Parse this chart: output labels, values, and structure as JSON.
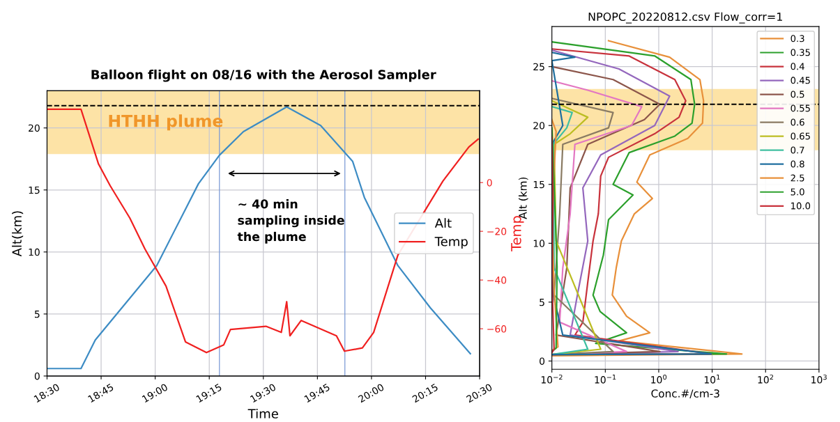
{
  "chart_data": [
    {
      "type": "line",
      "title": "Balloon flight on 08/16 with the Aerosol Sampler",
      "xlabel": "Time",
      "ylabel": "Alt(km)",
      "y2label": "Temp",
      "xlim": [
        18.5,
        20.5
      ],
      "xticks": [
        {
          "value": 18.5,
          "label": "18:30"
        },
        {
          "value": 18.75,
          "label": "18:45"
        },
        {
          "value": 19.0,
          "label": "19:00"
        },
        {
          "value": 19.25,
          "label": "19:15"
        },
        {
          "value": 19.5,
          "label": "19:30"
        },
        {
          "value": 19.75,
          "label": "19:45"
        },
        {
          "value": 20.0,
          "label": "20:00"
        },
        {
          "value": 20.25,
          "label": "20:15"
        },
        {
          "value": 20.5,
          "label": "20:30"
        }
      ],
      "ylim": [
        0,
        23
      ],
      "yticks": [
        0,
        5,
        10,
        15,
        20
      ],
      "y2lim": [
        -79.4,
        37.7
      ],
      "y2ticks": [
        {
          "value": -60,
          "label": "−60"
        },
        {
          "value": -40,
          "label": "−40"
        },
        {
          "value": -20,
          "label": "−20"
        },
        0
      ],
      "grid": true,
      "legend": "right",
      "series": [
        {
          "name": "Alt",
          "color": "#3d8cc4",
          "x": [
            18.5,
            18.657,
            18.723,
            19.007,
            19.2,
            19.297,
            19.408,
            19.608,
            19.765,
            19.877,
            19.913,
            19.967,
            20.122,
            20.272,
            20.457
          ],
          "values": [
            0.6,
            0.6,
            2.9,
            8.9,
            15.5,
            17.8,
            19.7,
            21.7,
            20.2,
            18.0,
            17.3,
            14.4,
            8.9,
            5.5,
            1.8
          ]
        },
        {
          "name": "Temp",
          "color": "#f02020",
          "axis": "y2",
          "x": [
            18.5,
            18.657,
            18.738,
            18.792,
            18.883,
            18.953,
            19.05,
            19.14,
            19.167,
            19.237,
            19.317,
            19.348,
            19.512,
            19.583,
            19.608,
            19.623,
            19.675,
            19.838,
            19.875,
            19.958,
            20.01,
            20.122,
            20.33,
            20.45,
            20.493
          ],
          "values": [
            30.1,
            30.1,
            7.6,
            -1.3,
            -14.6,
            -27.3,
            -42.5,
            -65.4,
            -66.6,
            -69.8,
            -66.6,
            -60.3,
            -59.0,
            -61.5,
            -48.9,
            -62.9,
            -56.6,
            -62.9,
            -69.2,
            -67.9,
            -61.5,
            -29.8,
            0.6,
            14.6,
            17.8
          ]
        }
      ],
      "ref_lines": [
        {
          "axis": "y",
          "value": 21.8,
          "label": null,
          "color": "#000000",
          "line_style": "dashed"
        },
        {
          "axis": "x",
          "value": 19.297,
          "label": null,
          "color": "#7a9ad6",
          "line_style": "solid"
        },
        {
          "axis": "x",
          "value": 19.877,
          "label": null,
          "color": "#7a9ad6",
          "line_style": "solid"
        }
      ],
      "bands": [
        {
          "axis": "y",
          "from": 17.9,
          "to": 23.0,
          "label": "HTHH plume",
          "color": "#fde3a6"
        }
      ],
      "annotations": [
        "~ 40 min\nsampling inside\nthe plume"
      ]
    },
    {
      "type": "line",
      "title": "NPOPC_20220812.csv Flow_corr=1",
      "xlabel": "Conc.#/cm-3",
      "ylabel": "Alt (km)",
      "log": "x",
      "xlim": [
        0.01,
        1000
      ],
      "xticks": [
        {
          "value": 0.01,
          "label": "10$^{−2}$"
        },
        {
          "value": 0.1,
          "label": "10$^{−1}$"
        },
        {
          "value": 1,
          "label": "10$^{0}$"
        },
        {
          "value": 10,
          "label": "10$^{1}$"
        },
        {
          "value": 100,
          "label": "10$^{2}$"
        },
        {
          "value": 1000,
          "label": "10$^{3}$"
        }
      ],
      "ylim": [
        -0.7,
        28.4
      ],
      "yticks": [
        0,
        5,
        10,
        15,
        20,
        25
      ],
      "grid": true,
      "legend": "top right",
      "series": [
        {
          "name": "0.3",
          "color": "#e8903a",
          "x": [
            0.115,
            1.6,
            5.9,
            6.9,
            6.6,
            3.5,
            0.68,
            0.39,
            0.76,
            0.35,
            0.2,
            0.16,
            0.135,
            0.25,
            0.68,
            0.18,
            36,
            0.01
          ],
          "values": [
            27.2,
            25.8,
            23.9,
            22.1,
            20.2,
            18.9,
            17.5,
            15.2,
            13.8,
            12.5,
            10.2,
            7.9,
            5.6,
            3.8,
            2.4,
            1.7,
            0.6,
            0.45
          ]
        },
        {
          "name": "0.35",
          "color": "#2ca02c",
          "x": [
            0.01,
            0.85,
            4.0,
            4.7,
            4.2,
            2.0,
            0.28,
            0.14,
            0.33,
            0.115,
            0.092,
            0.059,
            0.08,
            0.25,
            0.066,
            18.6,
            0.01
          ],
          "values": [
            27.1,
            25.9,
            23.9,
            21.8,
            20.2,
            19.1,
            17.7,
            15.0,
            14.1,
            12.0,
            9.0,
            5.6,
            4.2,
            2.4,
            1.5,
            0.6,
            0.55
          ]
        },
        {
          "name": "0.4",
          "color": "#c8323c",
          "x": [
            0.01,
            0.28,
            2.0,
            3.2,
            2.4,
            0.84,
            0.115,
            0.082,
            0.074,
            0.059,
            0.047,
            0.038,
            0.027,
            9.6,
            0.01
          ],
          "values": [
            26.5,
            25.9,
            23.9,
            22.1,
            20.7,
            19.3,
            17.3,
            15.7,
            12.5,
            10.2,
            6.7,
            3.3,
            2.2,
            0.6,
            0.55
          ]
        },
        {
          "name": "0.45",
          "color": "#9467bd",
          "x": [
            0.01,
            0.18,
            1.6,
            0.84,
            0.082,
            0.038,
            0.047,
            0.03,
            0.022,
            2.3,
            0.01
          ],
          "values": [
            26.4,
            24.8,
            22.5,
            20.0,
            17.5,
            14.7,
            10.2,
            5.6,
            2.2,
            0.8,
            0.55
          ]
        },
        {
          "name": "0.5",
          "color": "#8c564b",
          "x": [
            0.01,
            0.14,
            1.05,
            0.54,
            0.047,
            0.022,
            0.019,
            0.012,
            1.05,
            0.01
          ],
          "values": [
            25.0,
            23.9,
            21.8,
            20.5,
            18.4,
            14.7,
            7.9,
            2.2,
            0.8,
            0.55
          ]
        },
        {
          "name": "0.55",
          "color": "#e377c2",
          "x": [
            0.01,
            0.047,
            0.48,
            0.31,
            0.027,
            0.022,
            0.016,
            0.014,
            0.25,
            0.01
          ],
          "values": [
            23.8,
            23.0,
            21.6,
            20.0,
            18.4,
            12.5,
            7.9,
            3.3,
            0.8,
            0.55
          ]
        },
        {
          "name": "0.6",
          "color": "#8a7b63",
          "x": [
            0.01,
            0.14,
            0.115,
            0.016,
            0.014,
            0.011,
            0.14,
            0.01
          ],
          "values": [
            22.3,
            21.1,
            19.8,
            18.4,
            12.5,
            5.6,
            0.8,
            0.55
          ]
        },
        {
          "name": "0.65",
          "color": "#bcbd22",
          "x": [
            0.01,
            0.047,
            0.022,
            0.011,
            0.012,
            0.082,
            0.01
          ],
          "values": [
            22.1,
            20.7,
            19.3,
            18.4,
            10.2,
            1.0,
            0.55
          ]
        },
        {
          "name": "0.7",
          "color": "#3fbfa0",
          "x": [
            0.01,
            0.024,
            0.019,
            0.0106,
            0.011,
            0.047,
            0.01
          ],
          "values": [
            21.6,
            21.1,
            19.8,
            18.4,
            7.9,
            1.0,
            0.55
          ]
        },
        {
          "name": "0.8",
          "color": "#1f6f9f",
          "x": [
            0.01,
            0.027,
            0.01,
            0.016,
            0.01,
            0.0106,
            0.016,
            9.6,
            0.01
          ],
          "values": [
            26.2,
            25.8,
            25.5,
            20.0,
            18.4,
            5.6,
            2.2,
            0.6,
            0.55
          ]
        },
        {
          "name": "2.5",
          "color": "#e8903a",
          "x": [
            0.01,
            0.012,
            0.01,
            0.011,
            0.013,
            0.01
          ],
          "values": [
            20.5,
            19.5,
            12.0,
            6.0,
            1.2,
            0.9
          ]
        },
        {
          "name": "5.0",
          "color": "#2ca02c",
          "x": [
            0.01,
            0.011,
            0.0125,
            0.012,
            0.01
          ],
          "values": [
            19.8,
            15.0,
            8.0,
            1.1,
            0.8
          ]
        },
        {
          "name": "10.0",
          "color": "#c8323c",
          "x": [
            0.01,
            0.0105,
            0.01,
            0.011,
            0.01
          ],
          "values": [
            19.0,
            14.0,
            7.0,
            1.0,
            0.7
          ]
        }
      ],
      "ref_lines": [
        {
          "axis": "y",
          "value": 21.8,
          "label": null,
          "color": "#000000",
          "line_style": "dashed"
        }
      ],
      "bands": [
        {
          "axis": "y",
          "from": 17.9,
          "to": 23.1,
          "color": "#fde3a6"
        }
      ]
    }
  ]
}
